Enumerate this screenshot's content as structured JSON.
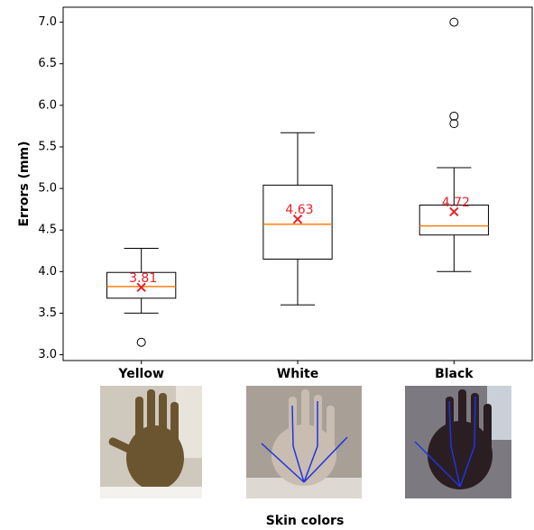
{
  "chart_data": {
    "type": "box",
    "x_label": "Skin colors",
    "y_label": "Errors (mm)",
    "categories": [
      "Yellow",
      "White",
      "Black"
    ],
    "boxes": [
      {
        "min": 3.5,
        "q1": 3.68,
        "median": 3.82,
        "q3": 3.99,
        "max": 4.28,
        "mean": 3.81,
        "outliers": [
          3.15
        ]
      },
      {
        "min": 3.6,
        "q1": 4.15,
        "median": 4.57,
        "q3": 5.04,
        "max": 5.67,
        "mean": 4.63,
        "outliers": []
      },
      {
        "min": 4.0,
        "q1": 4.44,
        "median": 4.55,
        "q3": 4.8,
        "max": 5.25,
        "mean": 4.72,
        "outliers": [
          5.78,
          5.87,
          7.0
        ]
      }
    ],
    "box_color": "#000000",
    "median_color": "#ff7f0e",
    "mean_color": "#e8202a",
    "ylim": [
      2.93,
      7.18
    ],
    "yticks": [
      {
        "value": 3,
        "label": "3.0"
      },
      3.5,
      {
        "value": 4,
        "label": "4.0"
      },
      4.5,
      {
        "value": 5,
        "label": "5.0"
      },
      5.5,
      {
        "value": 6,
        "label": "6.0"
      },
      6.5,
      {
        "value": 7,
        "label": "7.0"
      }
    ]
  }
}
